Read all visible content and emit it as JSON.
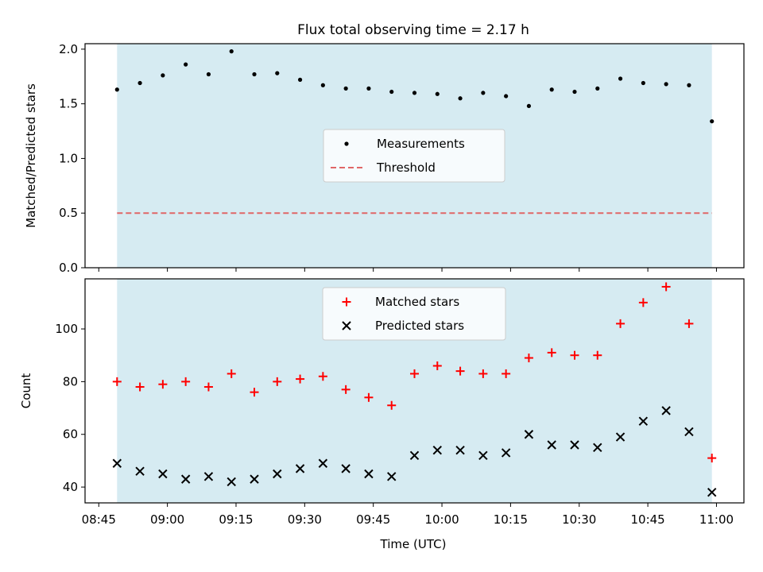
{
  "figure": {
    "title": "Flux total observing time = 2.17 h"
  },
  "colors": {
    "shade": "#add8e6",
    "measurement": "#000000",
    "threshold": "#e06666",
    "matched": "#ff0000",
    "predicted": "#000000"
  },
  "chart_data": [
    {
      "type": "scatter",
      "title": "Flux total observing time = 2.17 h",
      "xlabel": "",
      "ylabel": "Matched/Predicted stars",
      "xlim": [
        "08:42",
        "11:06"
      ],
      "ylim": [
        0,
        2.05
      ],
      "yticks": [
        0.0,
        0.5,
        1.0,
        1.5,
        2.0
      ],
      "ytick_labels": [
        "0.0",
        "0.5",
        "1.0",
        "1.5",
        "2.0"
      ],
      "shaded_span": [
        "08:49",
        "10:59"
      ],
      "legend_position": "center",
      "x": [
        "08:49",
        "08:54",
        "08:59",
        "09:04",
        "09:09",
        "09:14",
        "09:19",
        "09:24",
        "09:29",
        "09:34",
        "09:39",
        "09:44",
        "09:49",
        "09:54",
        "09:59",
        "10:04",
        "10:09",
        "10:14",
        "10:19",
        "10:24",
        "10:29",
        "10:34",
        "10:39",
        "10:44",
        "10:49",
        "10:54",
        "10:59"
      ],
      "series": [
        {
          "name": "Measurements",
          "kind": "points",
          "values": [
            1.63,
            1.69,
            1.76,
            1.86,
            1.77,
            1.98,
            1.77,
            1.78,
            1.72,
            1.67,
            1.64,
            1.64,
            1.61,
            1.6,
            1.59,
            1.55,
            1.6,
            1.57,
            1.48,
            1.63,
            1.61,
            1.64,
            1.73,
            1.69,
            1.68,
            1.67,
            1.34
          ]
        },
        {
          "name": "Threshold",
          "kind": "dashed-line",
          "value": 0.5
        }
      ]
    },
    {
      "type": "scatter",
      "xlabel": "Time (UTC)",
      "ylabel": "Count",
      "xlim": [
        "08:42",
        "11:06"
      ],
      "ylim": [
        34,
        119
      ],
      "yticks": [
        40,
        60,
        80,
        100
      ],
      "ytick_labels": [
        "40",
        "60",
        "80",
        "100"
      ],
      "xticks": [
        "08:45",
        "09:00",
        "09:15",
        "09:30",
        "09:45",
        "10:00",
        "10:15",
        "10:30",
        "10:45",
        "11:00"
      ],
      "shaded_span": [
        "08:49",
        "10:59"
      ],
      "legend_position": "upper center",
      "x": [
        "08:49",
        "08:54",
        "08:59",
        "09:04",
        "09:09",
        "09:14",
        "09:19",
        "09:24",
        "09:29",
        "09:34",
        "09:39",
        "09:44",
        "09:49",
        "09:54",
        "09:59",
        "10:04",
        "10:09",
        "10:14",
        "10:19",
        "10:24",
        "10:29",
        "10:34",
        "10:39",
        "10:44",
        "10:49",
        "10:54",
        "10:59"
      ],
      "series": [
        {
          "name": "Matched stars",
          "marker": "plus",
          "values": [
            80,
            78,
            79,
            80,
            78,
            83,
            76,
            80,
            81,
            82,
            77,
            74,
            71,
            83,
            86,
            84,
            83,
            83,
            89,
            91,
            90,
            90,
            102,
            110,
            116,
            102,
            51
          ]
        },
        {
          "name": "Predicted stars",
          "marker": "x",
          "values": [
            49,
            46,
            45,
            43,
            44,
            42,
            43,
            45,
            47,
            49,
            47,
            45,
            44,
            52,
            54,
            54,
            52,
            53,
            60,
            56,
            56,
            55,
            59,
            65,
            69,
            61,
            38
          ]
        }
      ]
    }
  ]
}
